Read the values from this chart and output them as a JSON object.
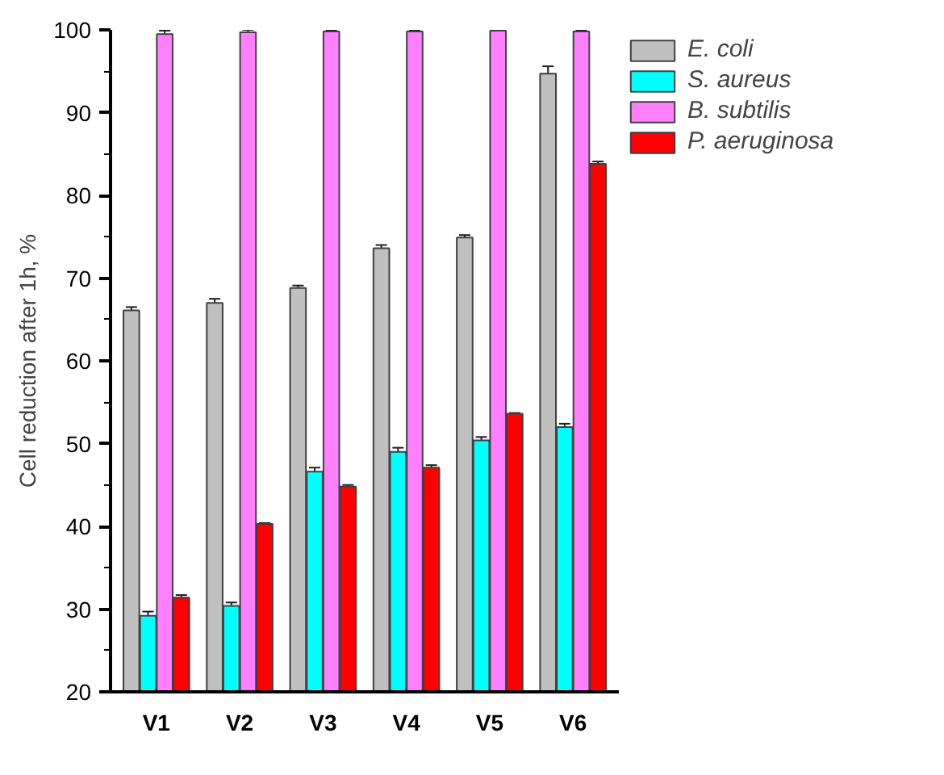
{
  "chart_data": {
    "type": "bar",
    "ylabel": "Cell reduction after 1h, %",
    "categories": [
      "V1",
      "V2",
      "V3",
      "V4",
      "V5",
      "V6"
    ],
    "series": [
      {
        "name": "E. coli",
        "color": "#c0c0c0",
        "values": [
          66.1,
          67.0,
          68.8,
          73.6,
          74.9,
          94.7
        ],
        "errors": [
          0.4,
          0.5,
          0.3,
          0.4,
          0.3,
          0.9
        ]
      },
      {
        "name": "S. aureus",
        "color": "#00ffff",
        "values": [
          29.2,
          30.4,
          46.6,
          49.0,
          50.4,
          52.0
        ],
        "errors": [
          0.5,
          0.4,
          0.5,
          0.5,
          0.4,
          0.4
        ]
      },
      {
        "name": "B. subtilis",
        "color": "#ff80ff",
        "values": [
          99.5,
          99.7,
          99.8,
          99.8,
          99.9,
          99.8
        ],
        "errors": [
          0.4,
          0.3,
          0.2,
          0.2,
          0.1,
          0.2
        ]
      },
      {
        "name": "P. aeruginosa",
        "color": "#ff0000",
        "values": [
          31.4,
          40.3,
          44.8,
          47.1,
          53.6,
          83.8
        ],
        "errors": [
          0.3,
          0.1,
          0.2,
          0.3,
          0.1,
          0.3
        ]
      }
    ],
    "ylim": [
      20,
      100
    ],
    "yticks": [
      20,
      {
        "value": 25,
        "label": null
      },
      30,
      {
        "value": 35,
        "label": null
      },
      40,
      {
        "value": 45,
        "label": null
      },
      50,
      {
        "value": 55,
        "label": null
      },
      60,
      {
        "value": 65,
        "label": null
      },
      70,
      {
        "value": 75,
        "label": null
      },
      80,
      {
        "value": 85,
        "label": null
      },
      90,
      {
        "value": 95,
        "label": null
      },
      100
    ],
    "grid": false,
    "legend": "right"
  }
}
